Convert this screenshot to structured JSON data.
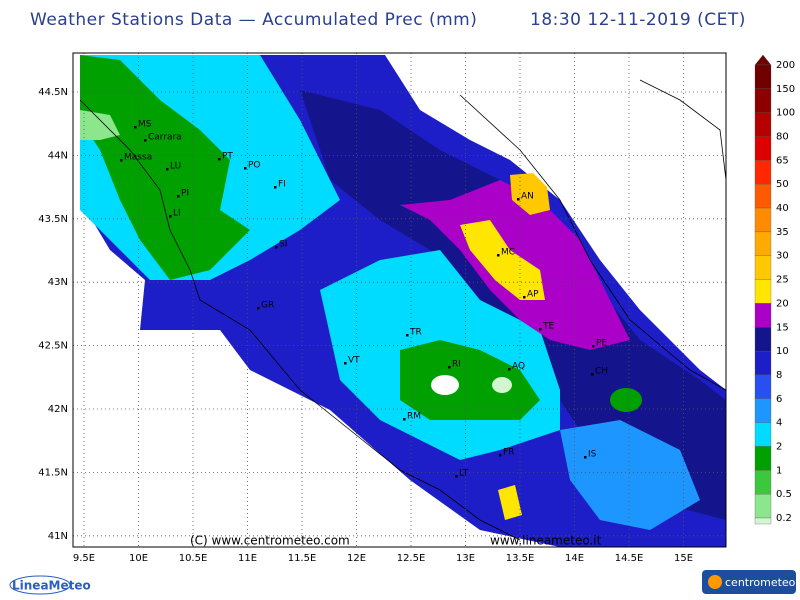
{
  "header": {
    "title": "Weather Stations Data — Accumulated Prec (mm)",
    "time": "18:30 12-11-2019 (CET)"
  },
  "axes": {
    "lon_labels": [
      "9.5E",
      "10E",
      "10.5E",
      "11E",
      "11.5E",
      "12E",
      "12.5E",
      "13E",
      "13.5E",
      "14E",
      "14.5E",
      "15E"
    ],
    "lat_labels": [
      "44.5N",
      "44N",
      "43.5N",
      "43N",
      "42.5N",
      "42N",
      "41.5N",
      "41N"
    ]
  },
  "legend": [
    {
      "label": "200",
      "color": "#6e0000"
    },
    {
      "label": "150",
      "color": "#8c0000"
    },
    {
      "label": "100",
      "color": "#b40000"
    },
    {
      "label": "80",
      "color": "#dc0000"
    },
    {
      "label": "65",
      "color": "#ff2800"
    },
    {
      "label": "50",
      "color": "#ff5a00"
    },
    {
      "label": "40",
      "color": "#ff8c00"
    },
    {
      "label": "35",
      "color": "#ffaa00"
    },
    {
      "label": "30",
      "color": "#ffc800"
    },
    {
      "label": "25",
      "color": "#ffe600"
    },
    {
      "label": "20",
      "color": "#aa00c8"
    },
    {
      "label": "15",
      "color": "#14148c"
    },
    {
      "label": "10",
      "color": "#1e1ec8"
    },
    {
      "label": "8",
      "color": "#2850f0"
    },
    {
      "label": "6",
      "color": "#1e96ff"
    },
    {
      "label": "4",
      "color": "#00dcff"
    },
    {
      "label": "2",
      "color": "#00a000"
    },
    {
      "label": "1",
      "color": "#3cc83c"
    },
    {
      "label": "0.5",
      "color": "#8ce68c"
    },
    {
      "label": "0.2",
      "color": "#d2f5d2"
    }
  ],
  "cities": [
    "MS",
    "Carrara",
    "Massa",
    "LU",
    "PT",
    "PO",
    "FI",
    "PI",
    "LI",
    "SI",
    "AN",
    "MC",
    "AP",
    "TE",
    "PE",
    "CH",
    "GR",
    "VT",
    "TR",
    "RI",
    "AQ",
    "RM",
    "FR",
    "IS",
    "LT"
  ],
  "credits": {
    "left": "(C) www.centrometeo.com",
    "right": "www.lineameteo.it",
    "logo_left": "LineaMeteo",
    "logo_right": "centrometeo"
  }
}
